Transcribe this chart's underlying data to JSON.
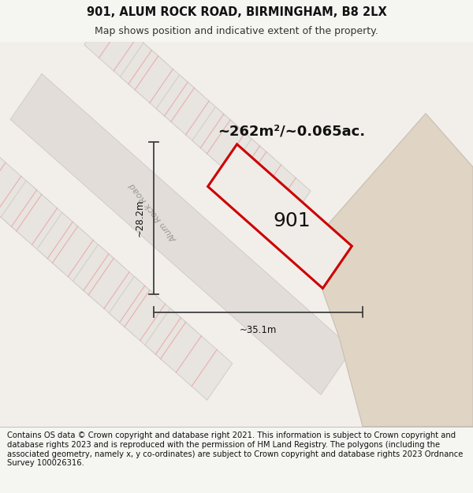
{
  "title_line1": "901, ALUM ROCK ROAD, BIRMINGHAM, B8 2LX",
  "title_line2": "Map shows position and indicative extent of the property.",
  "footer_text": "Contains OS data © Crown copyright and database right 2021. This information is subject to Crown copyright and database rights 2023 and is reproduced with the permission of HM Land Registry. The polygons (including the associated geometry, namely x, y co-ordinates) are subject to Crown copyright and database rights 2023 Ordnance Survey 100026316.",
  "area_label": "~262m²/~0.065ac.",
  "number_label": "901",
  "dim_width": "~35.1m",
  "dim_height": "~28.2m",
  "road_label": "Alum Rock Road",
  "map_bg": "#f2eeea",
  "block_color": "#e8e4e0",
  "block_edge": "#d0ccc8",
  "road_color": "#e2ddd8",
  "road_edge": "#c8c4c0",
  "pink_line_color": "#e8a8a8",
  "red_outline_color": "#cc0000",
  "dim_line_color": "#404040",
  "beige_color": "#e0d4c4",
  "beige_edge": "#c8beb2",
  "footer_bg": "#f2eeea",
  "title_bg": "#f5f5f2",
  "title_fontsize": 10.5,
  "subtitle_fontsize": 9,
  "footer_fontsize": 7.2,
  "area_fontsize": 13,
  "number_fontsize": 18,
  "road_fontsize": 8,
  "dim_fontsize": 8.5
}
